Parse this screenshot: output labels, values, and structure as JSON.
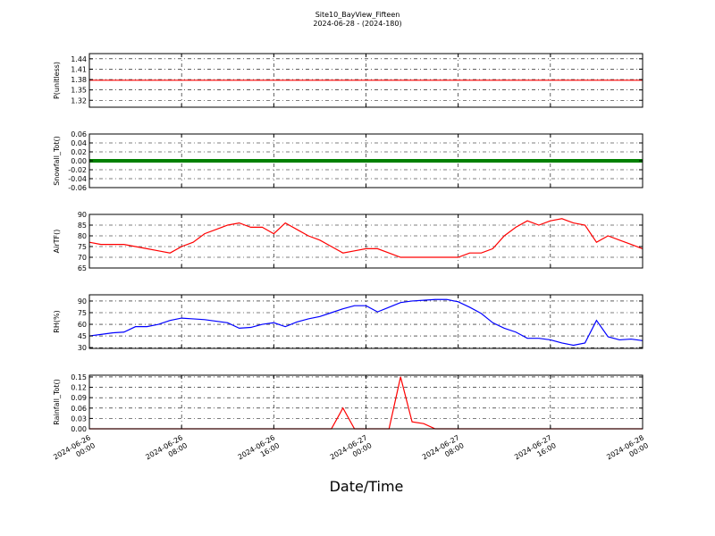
{
  "chart_data": [
    {
      "type": "line",
      "title": "Site10_BayView_Fifteen",
      "subtitle": "2024-06-28 - (2024-180)",
      "ylabel": "P(unitless)",
      "x": [
        "2024-06-26 00:00",
        "2024-06-26 01:00",
        "2024-06-26 02:00",
        "2024-06-26 03:00",
        "2024-06-26 04:00",
        "2024-06-26 05:00",
        "2024-06-26 06:00",
        "2024-06-26 07:00",
        "2024-06-26 08:00",
        "2024-06-26 09:00",
        "2024-06-26 10:00",
        "2024-06-26 11:00",
        "2024-06-26 12:00",
        "2024-06-26 13:00",
        "2024-06-26 14:00",
        "2024-06-26 15:00",
        "2024-06-26 16:00",
        "2024-06-26 17:00",
        "2024-06-26 18:00",
        "2024-06-26 19:00",
        "2024-06-26 20:00",
        "2024-06-26 21:00",
        "2024-06-26 22:00",
        "2024-06-26 23:00",
        "2024-06-27 00:00",
        "2024-06-27 01:00",
        "2024-06-27 02:00",
        "2024-06-27 03:00",
        "2024-06-27 04:00",
        "2024-06-27 05:00",
        "2024-06-27 06:00",
        "2024-06-27 07:00",
        "2024-06-27 08:00",
        "2024-06-27 09:00",
        "2024-06-27 10:00",
        "2024-06-27 11:00",
        "2024-06-27 12:00",
        "2024-06-27 13:00",
        "2024-06-27 14:00",
        "2024-06-27 15:00",
        "2024-06-27 16:00",
        "2024-06-27 17:00",
        "2024-06-27 18:00",
        "2024-06-27 19:00",
        "2024-06-27 20:00",
        "2024-06-27 21:00",
        "2024-06-27 22:00",
        "2024-06-27 23:00",
        "2024-06-28 00:00"
      ],
      "series": [
        {
          "name": "P",
          "color": "#ff0000",
          "values": [
            1.378,
            1.378,
            1.378,
            1.378,
            1.378,
            1.378,
            1.378,
            1.378,
            1.378,
            1.378,
            1.378,
            1.378,
            1.378,
            1.378,
            1.378,
            1.378,
            1.378,
            1.378,
            1.378,
            1.378,
            1.378,
            1.378,
            1.378,
            1.378,
            1.378,
            1.378,
            1.378,
            1.378,
            1.378,
            1.378,
            1.378,
            1.378,
            1.378,
            1.378,
            1.378,
            1.378,
            1.378,
            1.378,
            1.378,
            1.378,
            1.378,
            1.378,
            1.378,
            1.378,
            1.378,
            1.378,
            1.378,
            1.378,
            1.378
          ]
        }
      ],
      "xlim": [
        "2024-06-26 00:00",
        "2024-06-28 00:00"
      ],
      "ylim": [
        1.3,
        1.455
      ],
      "yticks": [
        1.32,
        1.35,
        1.38,
        1.41,
        1.44
      ],
      "grid": true
    },
    {
      "type": "line",
      "ylabel": "Snowfall_Tot()",
      "x": [
        "2024-06-26 00:00",
        "2024-06-26 01:00",
        "2024-06-26 02:00",
        "2024-06-26 03:00",
        "2024-06-26 04:00",
        "2024-06-26 05:00",
        "2024-06-26 06:00",
        "2024-06-26 07:00",
        "2024-06-26 08:00",
        "2024-06-26 09:00",
        "2024-06-26 10:00",
        "2024-06-26 11:00",
        "2024-06-26 12:00",
        "2024-06-26 13:00",
        "2024-06-26 14:00",
        "2024-06-26 15:00",
        "2024-06-26 16:00",
        "2024-06-26 17:00",
        "2024-06-26 18:00",
        "2024-06-26 19:00",
        "2024-06-26 20:00",
        "2024-06-26 21:00",
        "2024-06-26 22:00",
        "2024-06-26 23:00",
        "2024-06-27 00:00",
        "2024-06-27 01:00",
        "2024-06-27 02:00",
        "2024-06-27 03:00",
        "2024-06-27 04:00",
        "2024-06-27 05:00",
        "2024-06-27 06:00",
        "2024-06-27 07:00",
        "2024-06-27 08:00",
        "2024-06-27 09:00",
        "2024-06-27 10:00",
        "2024-06-27 11:00",
        "2024-06-27 12:00",
        "2024-06-27 13:00",
        "2024-06-27 14:00",
        "2024-06-27 15:00",
        "2024-06-27 16:00",
        "2024-06-27 17:00",
        "2024-06-27 18:00",
        "2024-06-27 19:00",
        "2024-06-27 20:00",
        "2024-06-27 21:00",
        "2024-06-27 22:00",
        "2024-06-27 23:00",
        "2024-06-28 00:00"
      ],
      "series": [
        {
          "name": "Snowfall_Tot",
          "color": "#008000",
          "values": [
            0,
            0,
            0,
            0,
            0,
            0,
            0,
            0,
            0,
            0,
            0,
            0,
            0,
            0,
            0,
            0,
            0,
            0,
            0,
            0,
            0,
            0,
            0,
            0,
            0,
            0,
            0,
            0,
            0,
            0,
            0,
            0,
            0,
            0,
            0,
            0,
            0,
            0,
            0,
            0,
            0,
            0,
            0,
            0,
            0,
            0,
            0,
            0,
            0
          ]
        }
      ],
      "xlim": [
        "2024-06-26 00:00",
        "2024-06-28 00:00"
      ],
      "ylim": [
        -0.06,
        0.06
      ],
      "yticks": [
        -0.06,
        -0.04,
        -0.02,
        {
          "value": 0,
          "label": "0.00"
        },
        0.02,
        0.04,
        0.06
      ],
      "grid": true
    },
    {
      "type": "line",
      "ylabel": "AirTF()",
      "x": [
        "2024-06-26 00:00",
        "2024-06-26 01:00",
        "2024-06-26 02:00",
        "2024-06-26 03:00",
        "2024-06-26 04:00",
        "2024-06-26 05:00",
        "2024-06-26 06:00",
        "2024-06-26 07:00",
        "2024-06-26 08:00",
        "2024-06-26 09:00",
        "2024-06-26 10:00",
        "2024-06-26 11:00",
        "2024-06-26 12:00",
        "2024-06-26 13:00",
        "2024-06-26 14:00",
        "2024-06-26 15:00",
        "2024-06-26 16:00",
        "2024-06-26 17:00",
        "2024-06-26 18:00",
        "2024-06-26 19:00",
        "2024-06-26 20:00",
        "2024-06-26 21:00",
        "2024-06-26 22:00",
        "2024-06-26 23:00",
        "2024-06-27 00:00",
        "2024-06-27 01:00",
        "2024-06-27 02:00",
        "2024-06-27 03:00",
        "2024-06-27 04:00",
        "2024-06-27 05:00",
        "2024-06-27 06:00",
        "2024-06-27 07:00",
        "2024-06-27 08:00",
        "2024-06-27 09:00",
        "2024-06-27 10:00",
        "2024-06-27 11:00",
        "2024-06-27 12:00",
        "2024-06-27 13:00",
        "2024-06-27 14:00",
        "2024-06-27 15:00",
        "2024-06-27 16:00",
        "2024-06-27 17:00",
        "2024-06-27 18:00",
        "2024-06-27 19:00",
        "2024-06-27 20:00",
        "2024-06-27 21:00",
        "2024-06-27 22:00",
        "2024-06-27 23:00",
        "2024-06-28 00:00"
      ],
      "series": [
        {
          "name": "AirTF",
          "color": "#ff0000",
          "values": [
            77,
            76,
            76,
            76,
            75,
            74,
            73,
            72,
            75,
            77,
            81,
            83,
            85,
            86,
            84,
            84,
            81,
            86,
            83,
            80,
            78,
            75,
            72,
            73,
            74,
            74,
            72,
            70,
            70,
            70,
            70,
            70,
            70,
            72,
            72,
            74,
            80,
            84,
            87,
            85,
            87,
            88,
            86,
            85,
            77,
            80,
            78,
            76,
            74
          ]
        }
      ],
      "xlim": [
        "2024-06-26 00:00",
        "2024-06-28 00:00"
      ],
      "ylim": [
        65,
        90
      ],
      "yticks": [
        65,
        70,
        75,
        80,
        85,
        90
      ],
      "grid": true
    },
    {
      "type": "line",
      "ylabel": "RH(%)",
      "x": [
        "2024-06-26 00:00",
        "2024-06-26 01:00",
        "2024-06-26 02:00",
        "2024-06-26 03:00",
        "2024-06-26 04:00",
        "2024-06-26 05:00",
        "2024-06-26 06:00",
        "2024-06-26 07:00",
        "2024-06-26 08:00",
        "2024-06-26 09:00",
        "2024-06-26 10:00",
        "2024-06-26 11:00",
        "2024-06-26 12:00",
        "2024-06-26 13:00",
        "2024-06-26 14:00",
        "2024-06-26 15:00",
        "2024-06-26 16:00",
        "2024-06-26 17:00",
        "2024-06-26 18:00",
        "2024-06-26 19:00",
        "2024-06-26 20:00",
        "2024-06-26 21:00",
        "2024-06-26 22:00",
        "2024-06-26 23:00",
        "2024-06-27 00:00",
        "2024-06-27 01:00",
        "2024-06-27 02:00",
        "2024-06-27 03:00",
        "2024-06-27 04:00",
        "2024-06-27 05:00",
        "2024-06-27 06:00",
        "2024-06-27 07:00",
        "2024-06-27 08:00",
        "2024-06-27 09:00",
        "2024-06-27 10:00",
        "2024-06-27 11:00",
        "2024-06-27 12:00",
        "2024-06-27 13:00",
        "2024-06-27 14:00",
        "2024-06-27 15:00",
        "2024-06-27 16:00",
        "2024-06-27 17:00",
        "2024-06-27 18:00",
        "2024-06-27 19:00",
        "2024-06-27 20:00",
        "2024-06-27 21:00",
        "2024-06-27 22:00",
        "2024-06-27 23:00",
        "2024-06-28 00:00"
      ],
      "series": [
        {
          "name": "RH",
          "color": "#0000ff",
          "values": [
            45,
            47,
            49,
            50,
            57,
            57,
            60,
            65,
            68,
            67,
            66,
            64,
            62,
            55,
            56,
            60,
            62,
            57,
            63,
            67,
            70,
            75,
            80,
            84,
            84,
            76,
            82,
            88,
            90,
            91,
            92,
            92,
            89,
            82,
            74,
            62,
            55,
            50,
            42,
            42,
            40,
            36,
            33,
            36,
            65,
            44,
            40,
            41,
            39
          ]
        }
      ],
      "xlim": [
        "2024-06-26 00:00",
        "2024-06-28 00:00"
      ],
      "ylim": [
        29,
        98
      ],
      "yticks": [
        30,
        45,
        60,
        75,
        90
      ],
      "grid": true
    },
    {
      "type": "line",
      "ylabel": "Rainfall_Tot()",
      "xlabel": "Date/Time",
      "x": [
        "2024-06-26 00:00",
        "2024-06-26 01:00",
        "2024-06-26 02:00",
        "2024-06-26 03:00",
        "2024-06-26 04:00",
        "2024-06-26 05:00",
        "2024-06-26 06:00",
        "2024-06-26 07:00",
        "2024-06-26 08:00",
        "2024-06-26 09:00",
        "2024-06-26 10:00",
        "2024-06-26 11:00",
        "2024-06-26 12:00",
        "2024-06-26 13:00",
        "2024-06-26 14:00",
        "2024-06-26 15:00",
        "2024-06-26 16:00",
        "2024-06-26 17:00",
        "2024-06-26 18:00",
        "2024-06-26 19:00",
        "2024-06-26 20:00",
        "2024-06-26 21:00",
        "2024-06-26 22:00",
        "2024-06-26 23:00",
        "2024-06-27 00:00",
        "2024-06-27 01:00",
        "2024-06-27 02:00",
        "2024-06-27 03:00",
        "2024-06-27 04:00",
        "2024-06-27 05:00",
        "2024-06-27 06:00",
        "2024-06-27 07:00",
        "2024-06-27 08:00",
        "2024-06-27 09:00",
        "2024-06-27 10:00",
        "2024-06-27 11:00",
        "2024-06-27 12:00",
        "2024-06-27 13:00",
        "2024-06-27 14:00",
        "2024-06-27 15:00",
        "2024-06-27 16:00",
        "2024-06-27 17:00",
        "2024-06-27 18:00",
        "2024-06-27 19:00",
        "2024-06-27 20:00",
        "2024-06-27 21:00",
        "2024-06-27 22:00",
        "2024-06-27 23:00",
        "2024-06-28 00:00"
      ],
      "series": [
        {
          "name": "Rainfall_Tot",
          "color": "#ff0000",
          "values": [
            0,
            0,
            0,
            0,
            0,
            0,
            0,
            0,
            0,
            0,
            0,
            0,
            0,
            0,
            0,
            0,
            0,
            0,
            0,
            0,
            0,
            0,
            0.06,
            0,
            0,
            0,
            0,
            0.15,
            0.02,
            0.015,
            0,
            0,
            0,
            0,
            0,
            0,
            0,
            0,
            0,
            0,
            0,
            0,
            0,
            0,
            0,
            0,
            0,
            0,
            0
          ]
        }
      ],
      "xlim": [
        "2024-06-26 00:00",
        "2024-06-28 00:00"
      ],
      "ylim": [
        0,
        0.155
      ],
      "yticks": [
        {
          "value": 0,
          "label": "0.00"
        },
        0.03,
        0.06,
        0.09,
        0.12,
        0.15
      ],
      "xticks": [
        "2024-06-26 00:00",
        "2024-06-26 08:00",
        "2024-06-26 16:00",
        "2024-06-27 00:00",
        "2024-06-27 08:00",
        "2024-06-27 16:00",
        "2024-06-28 00:00"
      ],
      "grid": true
    }
  ]
}
